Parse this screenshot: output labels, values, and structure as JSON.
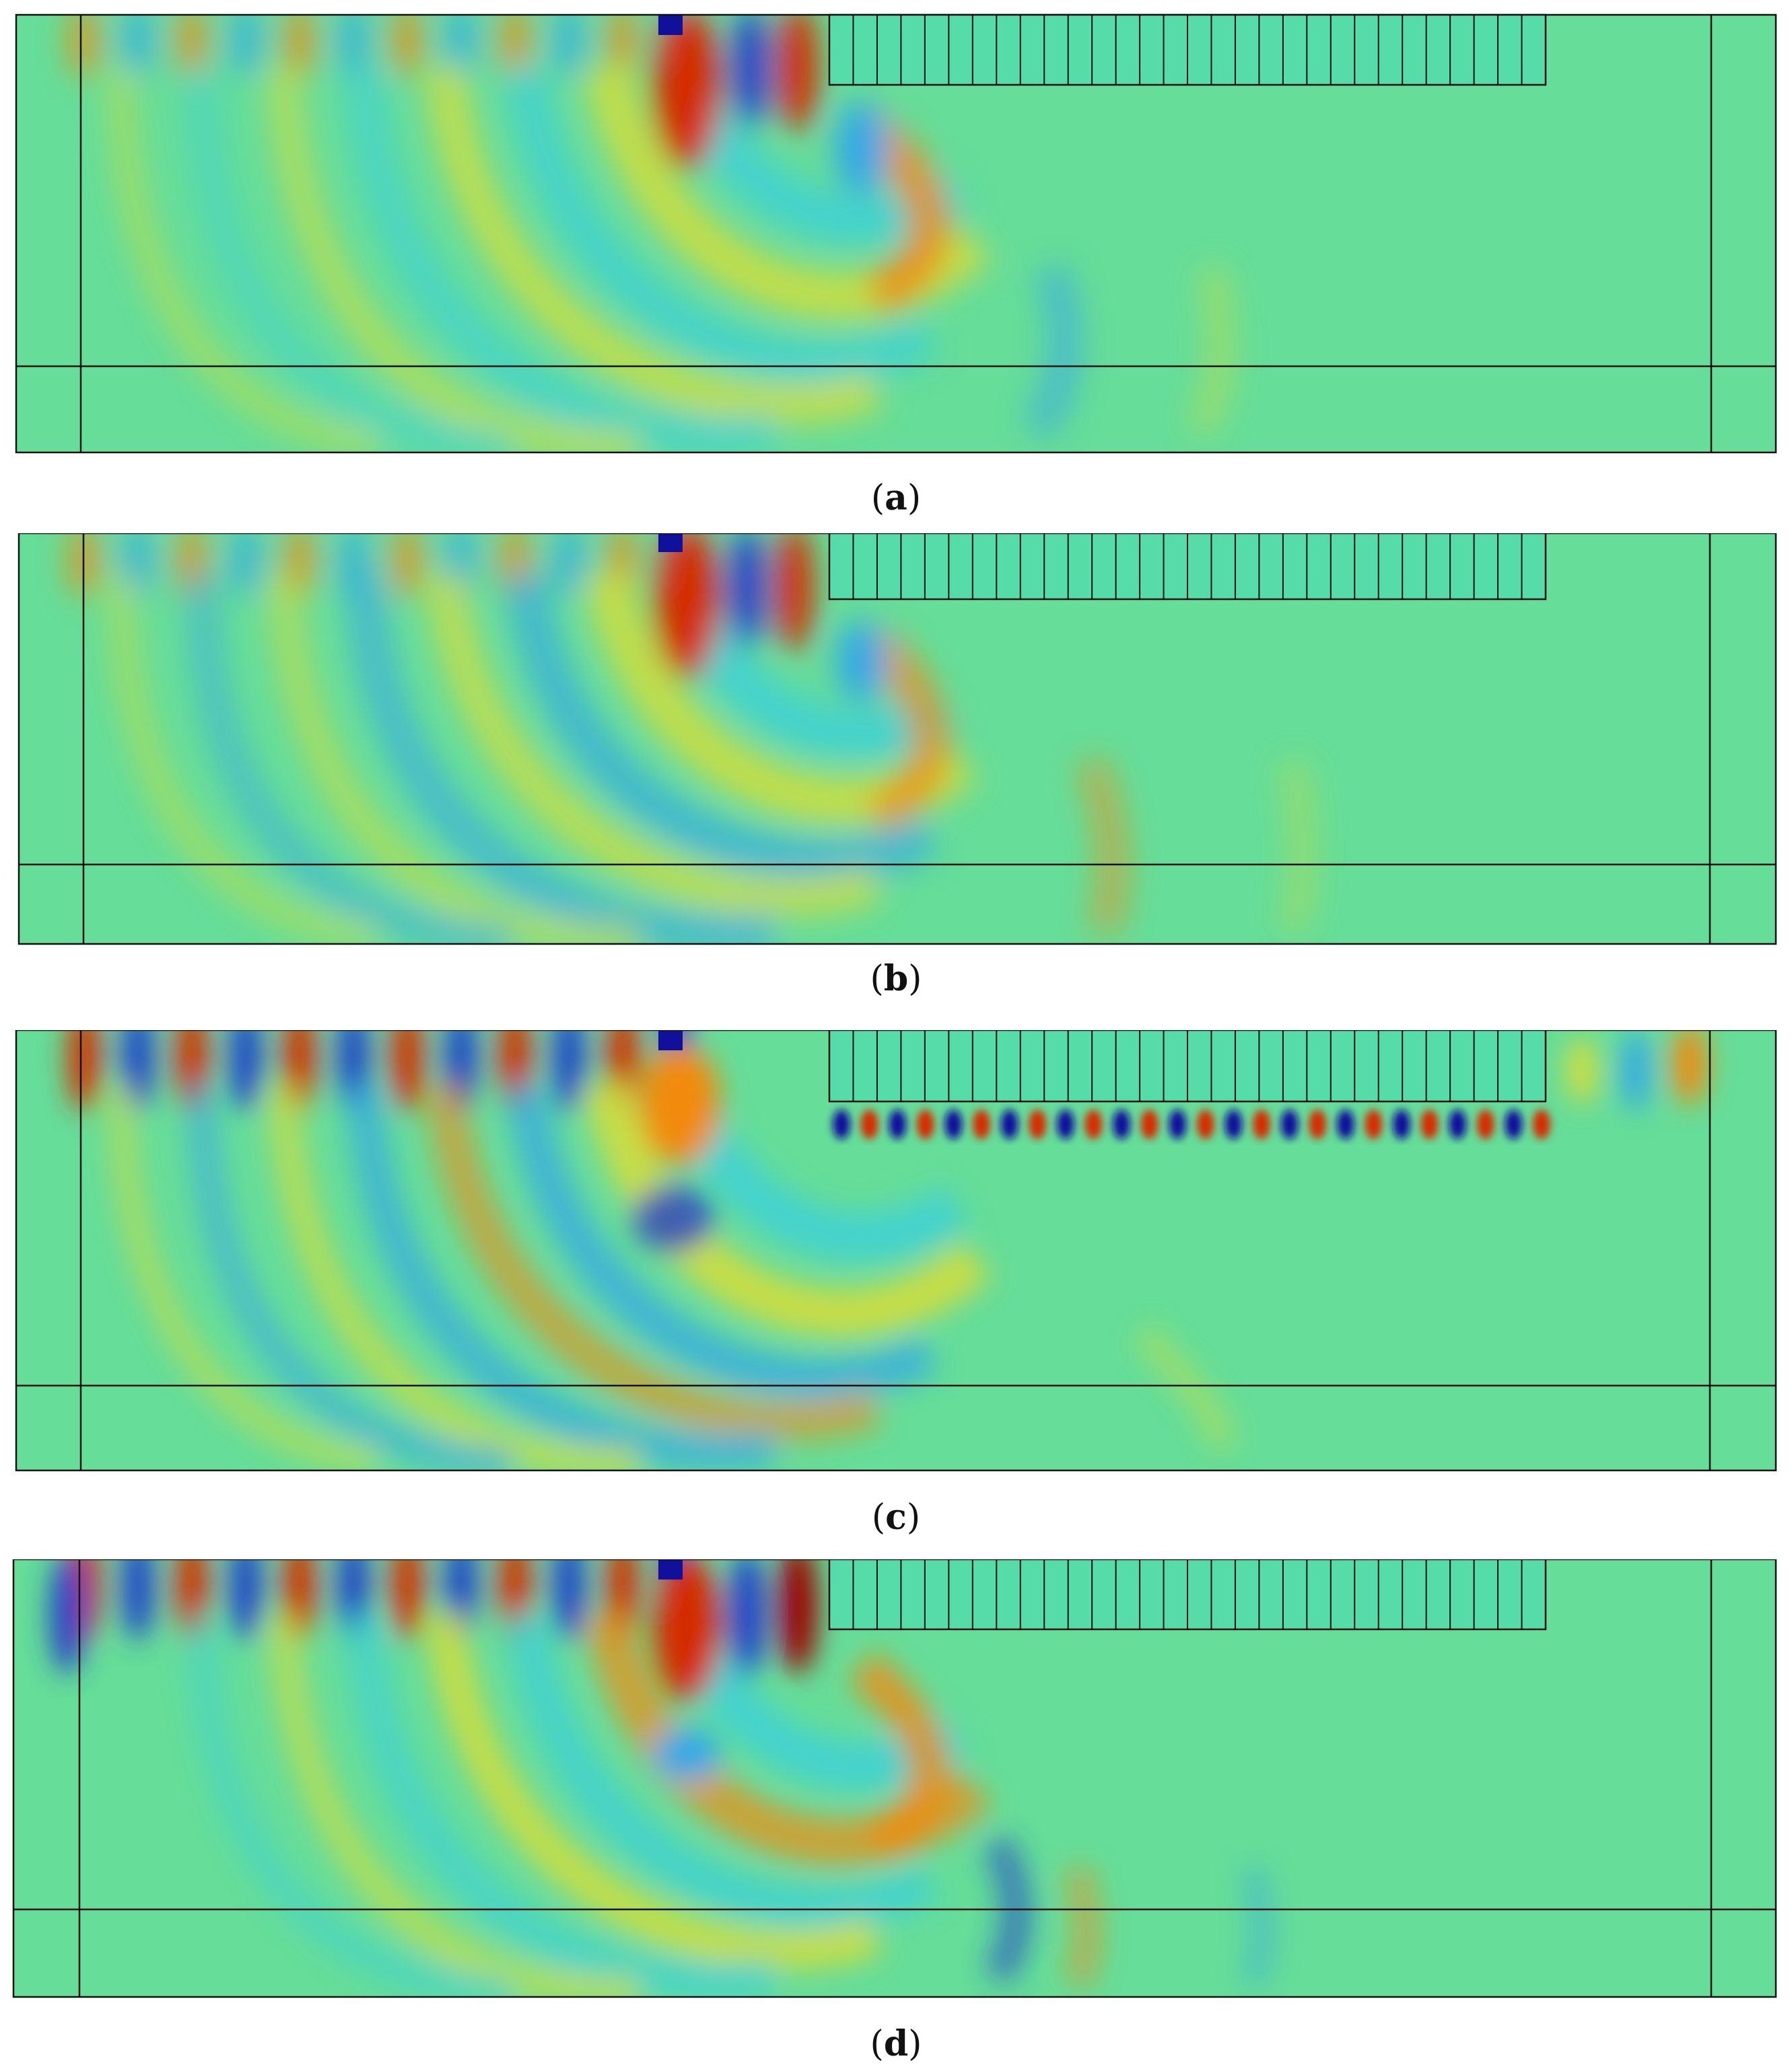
{
  "colors": {
    "background_field": "#66dd99",
    "outline": "#111111",
    "red": "#d42a00",
    "dark_red": "#9a0000",
    "orange": "#f28a10",
    "yellow": "#d8dd3a",
    "cyan": "#3fd0d6",
    "light_blue": "#35a8e6",
    "blue": "#2040c8",
    "dark_blue": "#10109a"
  },
  "panels": [
    {
      "id": "a",
      "label": "a"
    },
    {
      "id": "b",
      "label": "b"
    },
    {
      "id": "c",
      "label": "c"
    },
    {
      "id": "d",
      "label": "d"
    }
  ]
}
